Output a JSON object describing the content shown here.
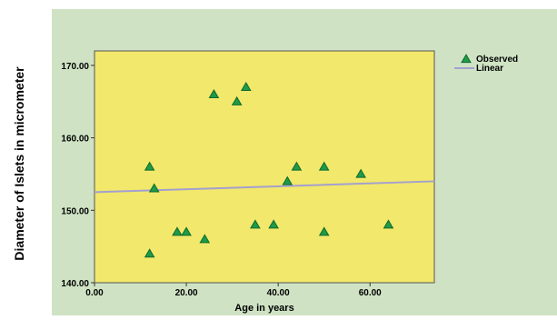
{
  "chart_data": {
    "type": "scatter",
    "xlabel": "Age in years",
    "ylabel": "Diameter of Islets in micrometer",
    "xlim": [
      0,
      74
    ],
    "ylim": [
      140,
      172
    ],
    "x_ticks": [
      0,
      20,
      40,
      60
    ],
    "x_tick_labels": [
      "0.00",
      "20.00",
      "40.00",
      "60.00"
    ],
    "y_ticks": [
      140,
      150,
      160,
      170
    ],
    "y_tick_labels": [
      "140.00",
      "150.00",
      "160.00",
      "170.00"
    ],
    "grid": false,
    "legend_position": "top-right",
    "colors": {
      "page_background": "#cfe3c4",
      "plot_background": "#f2e86b",
      "marker_fill": "#1f9a48",
      "marker_stroke": "#0d6a2c",
      "line": "#a3a0cf"
    },
    "series": [
      {
        "name": "Observed",
        "points": [
          {
            "x": 12,
            "y": 156
          },
          {
            "x": 12,
            "y": 144
          },
          {
            "x": 13,
            "y": 153
          },
          {
            "x": 18,
            "y": 147
          },
          {
            "x": 20,
            "y": 147
          },
          {
            "x": 24,
            "y": 146
          },
          {
            "x": 26,
            "y": 166
          },
          {
            "x": 31,
            "y": 165
          },
          {
            "x": 33,
            "y": 167
          },
          {
            "x": 35,
            "y": 148
          },
          {
            "x": 39,
            "y": 148
          },
          {
            "x": 42,
            "y": 154
          },
          {
            "x": 44,
            "y": 156
          },
          {
            "x": 50,
            "y": 156
          },
          {
            "x": 50,
            "y": 147
          },
          {
            "x": 58,
            "y": 155
          },
          {
            "x": 64,
            "y": 148
          }
        ]
      },
      {
        "name": "Linear",
        "type": "line",
        "points": [
          {
            "x": 0,
            "y": 152.5
          },
          {
            "x": 74,
            "y": 154.0
          }
        ]
      }
    ]
  }
}
